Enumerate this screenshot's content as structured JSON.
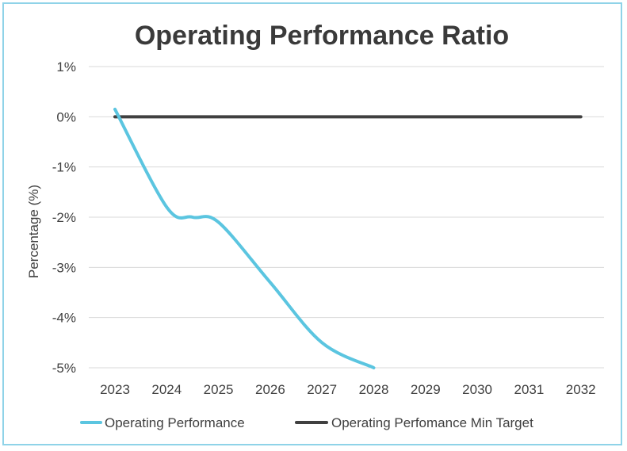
{
  "chart_data": {
    "type": "line",
    "title": "Operating Performance Ratio",
    "xlabel": "",
    "ylabel": "Percentage (%)",
    "categories": [
      "2023",
      "2024",
      "2025",
      "2026",
      "2027",
      "2028",
      "2029",
      "2030",
      "2031",
      "2032"
    ],
    "y_ticks": [
      "1%",
      "0%",
      "-1%",
      "-2%",
      "-3%",
      "-4%",
      "-5%"
    ],
    "y_tick_values": [
      1,
      0,
      -1,
      -2,
      -3,
      -4,
      -5
    ],
    "ylim": [
      -5,
      1
    ],
    "grid": true,
    "legend_position": "bottom",
    "series": [
      {
        "name": "Operating Performance",
        "color": "#5bc5e0",
        "x": [
          2023,
          2024,
          2024.5,
          2025,
          2026,
          2027,
          2028
        ],
        "values": [
          0.15,
          -1.8,
          -2.0,
          -2.1,
          -3.3,
          -4.5,
          -5.0
        ],
        "smooth": true
      },
      {
        "name": "Operating Perfomance Min Target",
        "color": "#404040",
        "x": [
          2023,
          2024,
          2025,
          2026,
          2027,
          2028,
          2029,
          2030,
          2031,
          2032
        ],
        "values": [
          0,
          0,
          0,
          0,
          0,
          0,
          0,
          0,
          0,
          0
        ],
        "smooth": false
      }
    ]
  }
}
